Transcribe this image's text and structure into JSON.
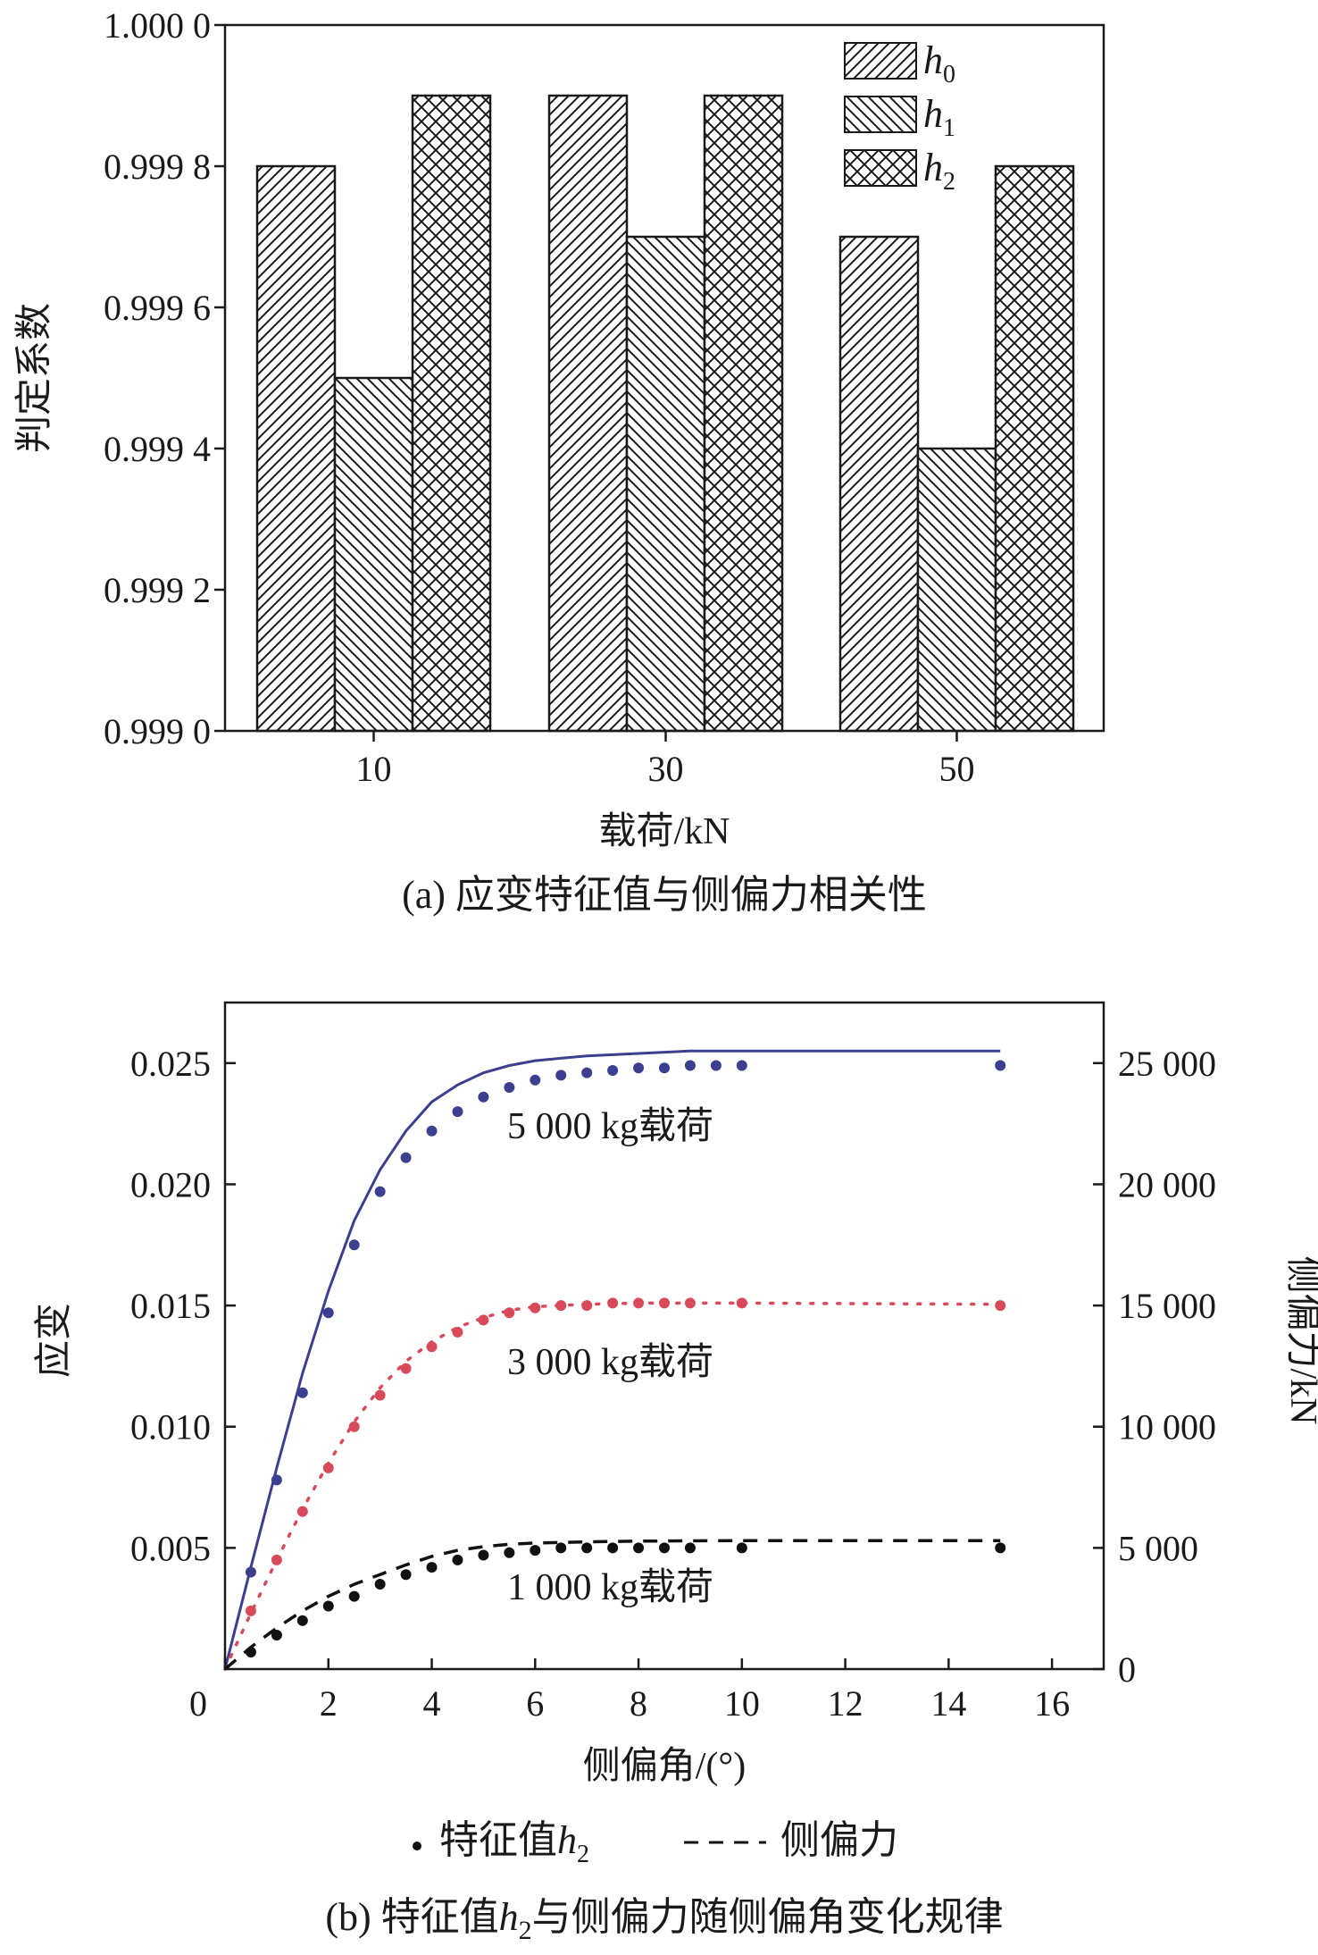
{
  "chart_data": [
    {
      "type": "bar",
      "caption": "(a) 应变特征值与侧偏力相关性",
      "xlabel": "载荷/kN",
      "ylabel": "判定系数",
      "categories": [
        "10",
        "30",
        "50"
      ],
      "ylim": [
        0.999,
        1.0
      ],
      "yticks": [
        "0.999 0",
        "0.999 2",
        "0.999 4",
        "0.999 6",
        "0.999 8",
        "1.000 0"
      ],
      "ytick_values": [
        0.999,
        0.9992,
        0.9994,
        0.9996,
        0.9998,
        1.0
      ],
      "legend_position": "top-right",
      "series": [
        {
          "name": "h",
          "sub": "0",
          "pattern": "diag-right",
          "values": [
            0.9998,
            0.9999,
            0.9997
          ]
        },
        {
          "name": "h",
          "sub": "1",
          "pattern": "diag-left",
          "values": [
            0.9995,
            0.9997,
            0.9994
          ]
        },
        {
          "name": "h",
          "sub": "2",
          "pattern": "cross",
          "values": [
            0.9999,
            0.9999,
            0.9998
          ]
        }
      ]
    },
    {
      "type": "scatter",
      "caption_parts": [
        "(b) 特征值",
        "h",
        "2",
        "与侧偏力随侧偏角变化规律"
      ],
      "xlabel": "侧偏角/(°)",
      "ylabel_left": "应变",
      "ylabel_right": "侧偏力/kN",
      "xlim": [
        0,
        17
      ],
      "xticks": [
        "0",
        "2",
        "4",
        "6",
        "8",
        "10",
        "12",
        "14",
        "16"
      ],
      "xtick_values": [
        0,
        2,
        4,
        6,
        8,
        10,
        12,
        14,
        16
      ],
      "ylim_left": [
        0,
        0.0275
      ],
      "yticks_left": [
        "0.005",
        "0.010",
        "0.015",
        "0.020",
        "0.025"
      ],
      "ytick_left_values": [
        0.005,
        0.01,
        0.015,
        0.02,
        0.025
      ],
      "ylim_right": [
        0,
        27500
      ],
      "yticks_right": [
        "0",
        "5 000",
        "10 000",
        "15 000",
        "20 000",
        "25 000"
      ],
      "ytick_right_values": [
        0,
        5000,
        10000,
        15000,
        20000,
        25000
      ],
      "legend": {
        "point_label_parts": [
          "特征值",
          "h",
          "2"
        ],
        "line_label": "侧偏力"
      },
      "series": [
        {
          "label": "5 000 kg载荷",
          "color": "#3c3f8f",
          "line_style": "solid",
          "points_x": [
            0.5,
            1,
            1.5,
            2,
            2.5,
            3,
            3.5,
            4,
            4.5,
            5,
            5.5,
            6,
            6.5,
            7,
            7.5,
            8,
            8.5,
            9,
            9.5,
            10,
            15
          ],
          "points_y": [
            0.004,
            0.0078,
            0.0114,
            0.0147,
            0.0175,
            0.0197,
            0.0211,
            0.0222,
            0.023,
            0.0236,
            0.024,
            0.0243,
            0.0245,
            0.0246,
            0.0247,
            0.0248,
            0.0248,
            0.0249,
            0.0249,
            0.0249,
            0.0249
          ],
          "line_x": [
            0,
            0.5,
            1,
            1.5,
            2,
            2.5,
            3,
            3.5,
            4,
            4.5,
            5,
            5.5,
            6,
            7,
            8,
            9,
            10,
            12,
            15
          ],
          "line_y": [
            0,
            4200,
            8300,
            12200,
            15600,
            18500,
            20600,
            22200,
            23400,
            24100,
            24600,
            24900,
            25100,
            25300,
            25400,
            25500,
            25500,
            25500,
            25500
          ]
        },
        {
          "label": "3 000 kg载荷",
          "color": "#d84a5a",
          "line_style": "dotted",
          "points_x": [
            0.5,
            1,
            1.5,
            2,
            2.5,
            3,
            3.5,
            4,
            4.5,
            5,
            5.5,
            6,
            6.5,
            7,
            7.5,
            8,
            8.5,
            9,
            10,
            15
          ],
          "points_y": [
            0.0024,
            0.0045,
            0.0065,
            0.0083,
            0.01,
            0.0113,
            0.0124,
            0.0133,
            0.0139,
            0.0144,
            0.0147,
            0.0149,
            0.015,
            0.015,
            0.0151,
            0.0151,
            0.0151,
            0.0151,
            0.0151,
            0.015
          ],
          "line_x": [
            0,
            0.5,
            1,
            1.5,
            2,
            2.5,
            3,
            3.5,
            4,
            4.5,
            5,
            5.5,
            6,
            7,
            8,
            10,
            15
          ],
          "line_y": [
            0,
            2300,
            4500,
            6600,
            8500,
            10200,
            11600,
            12700,
            13500,
            14100,
            14500,
            14800,
            14950,
            15050,
            15100,
            15100,
            15050
          ]
        },
        {
          "label": "1 000 kg载荷",
          "color": "#111111",
          "line_style": "dashed",
          "points_x": [
            0.5,
            1,
            1.5,
            2,
            2.5,
            3,
            3.5,
            4,
            4.5,
            5,
            5.5,
            6,
            6.5,
            7,
            7.5,
            8,
            8.5,
            9,
            10,
            15
          ],
          "points_y": [
            0.0007,
            0.0014,
            0.002,
            0.0026,
            0.003,
            0.0035,
            0.0039,
            0.0042,
            0.0045,
            0.0047,
            0.0048,
            0.0049,
            0.005,
            0.005,
            0.005,
            0.005,
            0.005,
            0.005,
            0.005,
            0.005
          ],
          "line_x": [
            0,
            0.5,
            1,
            1.5,
            2,
            2.5,
            3,
            3.5,
            4,
            4.5,
            5,
            5.5,
            6,
            7,
            8,
            10,
            15
          ],
          "line_y": [
            0,
            900,
            1700,
            2400,
            3000,
            3500,
            3900,
            4300,
            4650,
            4900,
            5050,
            5150,
            5200,
            5250,
            5280,
            5300,
            5300
          ]
        }
      ]
    }
  ]
}
